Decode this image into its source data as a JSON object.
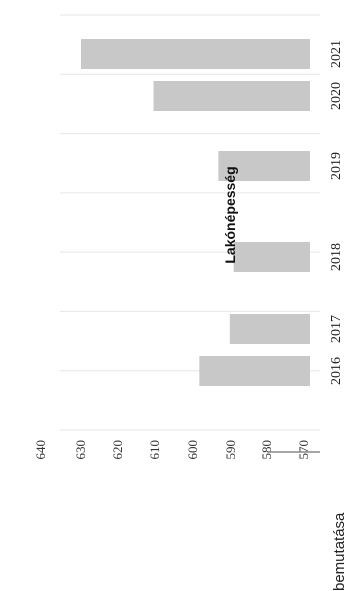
{
  "chart_data": {
    "type": "bar",
    "orientation": "horizontal",
    "title": "Lakónépesség",
    "categories": [
      "2016",
      "2017",
      "2018",
      "2019",
      "2020",
      "2021"
    ],
    "values": [
      599,
      591,
      590,
      594,
      611,
      630
    ],
    "xlim": [
      570,
      640
    ],
    "ticks": [
      570,
      580,
      590,
      600,
      610,
      620,
      630,
      640
    ],
    "tick_labels": [
      "570",
      "580",
      "590",
      "600",
      "610",
      "620",
      "630",
      "640"
    ],
    "grid": true,
    "bar_color": "#c8c8c8",
    "grid_color": "#e6e6e6"
  },
  "caption": "bemutatása"
}
